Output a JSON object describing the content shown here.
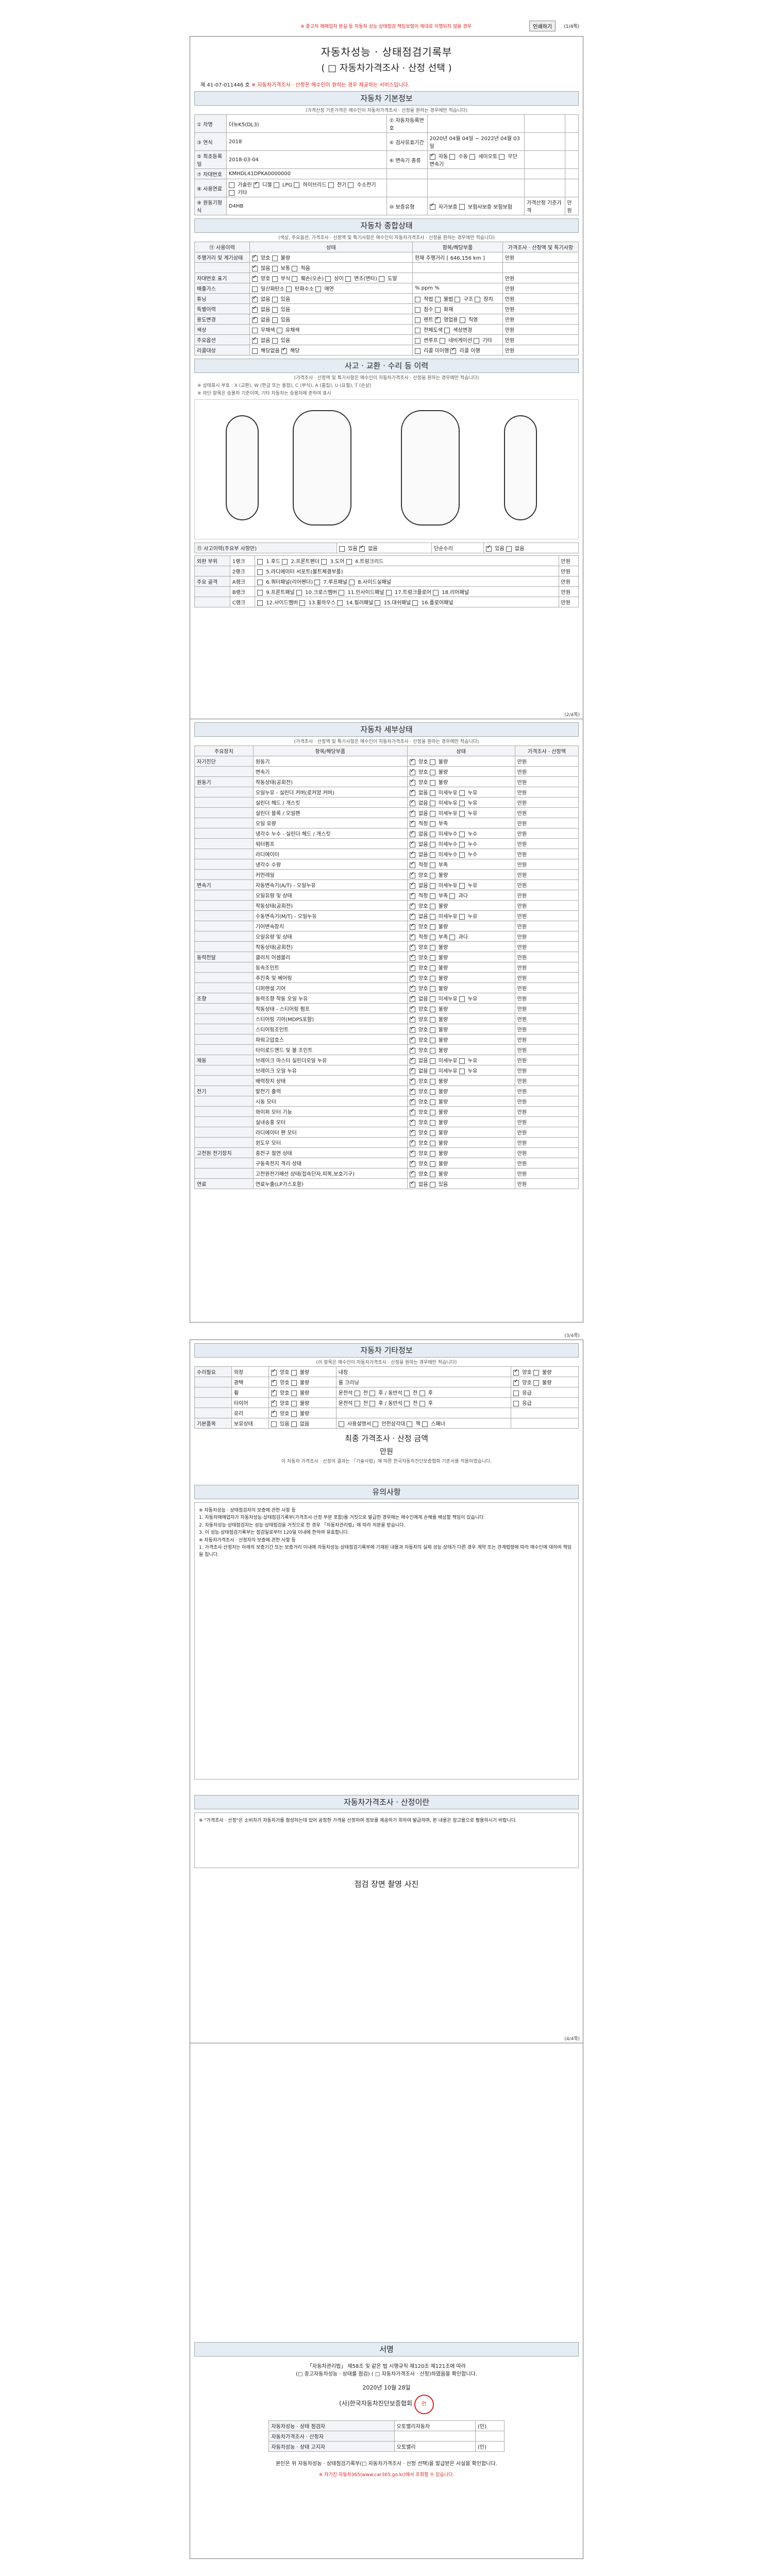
{
  "top": {
    "notice": "※ 중고차 매매업자 분실 등 자동차 성능·상태점검 책임보험이 제대로 이행되지 않을 경우",
    "print_label": "인쇄하기",
    "page": "(1/4쪽)"
  },
  "p1": {
    "title": "자동차성능 · 상태점검기록부",
    "subtitle": "( □ 자동차가격조사 · 산정 선택 )",
    "no_label": "제",
    "no_value": "41-07-011446",
    "no_suffix": "호",
    "meta_text": "※ 자동차가격조사 · 산정은 매수인이 원하는 경우 제공하는 서비스입니다.",
    "basic_title": "자동차 기본정보",
    "basic_sub": "(가격산정 기준가격은 매수인이 자동차가격조사 · 산정을 원하는 경우에만 적습니다)",
    "basic_rows": [
      [
        "① 차명",
        "더뉴K5(DL3)",
        "② 자동차등록번호",
        "",
        "",
        ""
      ],
      [
        "③ 연식",
        "2018",
        "④ 검사유효기간",
        "2020년 04월 04일 ~ 2022년 04월 03일",
        "",
        ""
      ],
      [
        "⑤ 최초등록일",
        "2018-03-04",
        "⑥ 변속기 종류",
        "■ 자동 □ 수동 □ 세미오토 □ 무단변속기",
        "",
        ""
      ],
      [
        "⑦ 차대번호",
        "KMHDL41DPKA0000000",
        "",
        "",
        "",
        ""
      ],
      [
        "⑧ 사용연료",
        "□ 가솔린 ■ 디젤 □ LPG □ 하이브리드 □ 전기 □ 수소전기 □ 기타",
        "",
        "",
        "",
        ""
      ],
      [
        "⑨ 원동기형식",
        "D4HB",
        "⑩ 보증유형",
        "■ 자가보증 □ 보험사보증 보험보험",
        "가격산정 기준가격",
        "만원"
      ]
    ],
    "overall_title": "자동차 종합상태",
    "overall_sub": "(색상, 주요옵션, 가격조사 · 산정액 및 특기사항은 매수인이 자동차가격조사 · 산정을 원하는 경우에만 적습니다)",
    "overall_headers": [
      "⑪ 사용이력",
      "상태",
      "항목/해당부품",
      "가격조사 · 산정액 및 특기사항"
    ],
    "overall_rows": [
      [
        "주행거리 및 계기상태",
        "■ 양호 □ 불량",
        "현재 주행거리 [ 646,156 km ]",
        "만원"
      ],
      [
        "",
        "■ 많음 □ 보통 □ 적음",
        "",
        ""
      ],
      [
        "차대번호 표기",
        "■ 양호 □ 부식 □ 훼손(오손) □ 상이 □ 변조(변타) □ 도말",
        "",
        "만원"
      ],
      [
        "배출가스",
        "□ 일산화탄소 □ 탄화수소 □ 매연",
        "% ppm %",
        "만원"
      ],
      [
        "튜닝",
        "■ 없음 □ 있음",
        "□ 적법 □ 불법 □ 구조 □ 장치",
        "만원"
      ],
      [
        "특별이력",
        "■ 없음 □ 있음",
        "□ 침수 □ 화재",
        "만원"
      ],
      [
        "용도변경",
        "■ 없음 □ 있음",
        "□ 렌트 ■ 영업용 □ 직영",
        "만원"
      ],
      [
        "색상",
        "□ 무채색 □ 유채색",
        "□ 전체도색 □ 색상변경",
        "만원"
      ],
      [
        "주요옵션",
        "■ 없음 □ 있음",
        "□ 썬루프 □ 네비게이션 □ 기타",
        "만원"
      ],
      [
        "리콜대상",
        "□ 해당없음 ■ 해당",
        "□ 리콜 미이행 ■ 리콜 이행",
        "만원"
      ]
    ],
    "accident_title": "사고 · 교환 · 수리 등 이력",
    "accident_sub": "(가격조사 · 산정액 및 특기사항은 매수인이 자동차가격조사 · 산정을 원하는 경우에만 적습니다)",
    "legend": "※ 상태표시 부호 : X (교환), W (판금 또는 용접), C (부식), A (흠집), U (요철), T (손상)",
    "legend2": "※ 하단 항목은 승용차 기준이며, 기타 자동차는 승용차에 준하여 표시",
    "history_rows": [
      [
        "⑪ 사고이력(주요부 사항만)",
        "□ 있음 ■ 없음",
        "단순수리",
        "■ 있음 □ 없음"
      ]
    ],
    "parts_rows": [
      [
        "외판 부위",
        "1랭크",
        "□ 1.후드 □ 2.프론트펜더 □ 3.도어 □ 4.트렁크리드",
        "만원"
      ],
      [
        "",
        "2랭크",
        "□ 5.라디에이터 서포트(볼트체결부품)",
        "만원"
      ],
      [
        "주요 골격",
        "A랭크",
        "□ 6.쿼터패널(리어펜더) □ 7.루프패널 □ 8.사이드실패널",
        "만원"
      ],
      [
        "",
        "B랭크",
        "□ 9.프론트패널 □ 10.크로스멤버 □ 11.인사이드패널 □ 17.트렁크플로어 □ 18.리어패널",
        "만원"
      ],
      [
        "",
        "C랭크",
        "□ 12.사이드멤버 □ 13.휠하우스 □ 14.필러패널 □ 15.대쉬패널 □ 16.플로어패널",
        "만원"
      ]
    ]
  },
  "p2": {
    "page": "(2/4쪽)",
    "title": "자동차 세부상태",
    "sub": "(가격조사 · 산정액 및 특기사항은 매수인이 자동차가격조사 · 산정을 원하는 경우에만 적습니다)",
    "headers": [
      "주요장치",
      "항목/해당부품",
      "상태",
      "가격조사 · 산정액"
    ],
    "rows": [
      [
        "자기진단",
        "원동기",
        "■ 양호 □ 불량",
        "만원"
      ],
      [
        "",
        "변속기",
        "■ 양호 □ 불량",
        "만원"
      ],
      [
        "원동기",
        "작동상태(공회전)",
        "■ 양호 □ 불량",
        "만원"
      ],
      [
        "",
        "오일누유 - 실린더 커버(로커암 커버)",
        "■ 없음 □ 미세누유 □ 누유",
        "만원"
      ],
      [
        "",
        "실린더 헤드 / 개스킷",
        "■ 없음 □ 미세누유 □ 누유",
        "만원"
      ],
      [
        "",
        "실린더 블록 / 오일팬",
        "■ 없음 □ 미세누유 □ 누유",
        "만원"
      ],
      [
        "",
        "오일 유량",
        "■ 적정 □ 부족",
        "만원"
      ],
      [
        "",
        "냉각수 누수 - 실린더 헤드 / 개스킷",
        "■ 없음 □ 미세누수 □ 누수",
        "만원"
      ],
      [
        "",
        "워터펌프",
        "■ 없음 □ 미세누수 □ 누수",
        "만원"
      ],
      [
        "",
        "라디에이터",
        "■ 없음 □ 미세누수 □ 누수",
        "만원"
      ],
      [
        "",
        "냉각수 수량",
        "■ 적정 □ 부족",
        "만원"
      ],
      [
        "",
        "커먼레일",
        "■ 양호 □ 불량",
        "만원"
      ],
      [
        "변속기",
        "자동변속기(A/T) - 오일누유",
        "■ 없음 □ 미세누유 □ 누유",
        "만원"
      ],
      [
        "",
        "오일유량 및 상태",
        "■ 적정 □ 부족 □ 과다",
        "만원"
      ],
      [
        "",
        "작동상태(공회전)",
        "■ 양호 □ 불량",
        "만원"
      ],
      [
        "",
        "수동변속기(M/T) - 오일누유",
        "■ 없음 □ 미세누유 □ 누유",
        "만원"
      ],
      [
        "",
        "기어변속장치",
        "■ 양호 □ 불량",
        "만원"
      ],
      [
        "",
        "오일유량 및 상태",
        "■ 적정 □ 부족 □ 과다",
        "만원"
      ],
      [
        "",
        "작동상태(공회전)",
        "■ 양호 □ 불량",
        "만원"
      ],
      [
        "동력전달",
        "클러치 어셈블리",
        "■ 양호 □ 불량",
        "만원"
      ],
      [
        "",
        "등속조인트",
        "■ 양호 □ 불량",
        "만원"
      ],
      [
        "",
        "추진축 및 베어링",
        "■ 양호 □ 불량",
        "만원"
      ],
      [
        "",
        "디퍼렌셜 기어",
        "■ 양호 □ 불량",
        "만원"
      ],
      [
        "조향",
        "동력조향 작동 오일 누유",
        "■ 없음 □ 미세누유 □ 누유",
        "만원"
      ],
      [
        "",
        "작동상태 - 스티어링 펌프",
        "■ 양호 □ 불량",
        "만원"
      ],
      [
        "",
        "스티어링 기어(MDPS포함)",
        "■ 양호 □ 불량",
        "만원"
      ],
      [
        "",
        "스티어링조인트",
        "■ 양호 □ 불량",
        "만원"
      ],
      [
        "",
        "파워고압호스",
        "■ 양호 □ 불량",
        "만원"
      ],
      [
        "",
        "타이로드엔드 및 볼 조인트",
        "■ 양호 □ 불량",
        "만원"
      ],
      [
        "제동",
        "브레이크 마스터 실린더오일 누유",
        "■ 없음 □ 미세누유 □ 누유",
        "만원"
      ],
      [
        "",
        "브레이크 오일 누유",
        "■ 없음 □ 미세누유 □ 누유",
        "만원"
      ],
      [
        "",
        "배력장치 상태",
        "■ 양호 □ 불량",
        "만원"
      ],
      [
        "전기",
        "발전기 출력",
        "■ 양호 □ 불량",
        "만원"
      ],
      [
        "",
        "시동 모터",
        "■ 양호 □ 불량",
        "만원"
      ],
      [
        "",
        "와이퍼 모터 기능",
        "■ 양호 □ 불량",
        "만원"
      ],
      [
        "",
        "실내송풍 모터",
        "■ 양호 □ 불량",
        "만원"
      ],
      [
        "",
        "라디에이터 팬 모터",
        "■ 양호 □ 불량",
        "만원"
      ],
      [
        "",
        "윈도우 모터",
        "■ 양호 □ 불량",
        "만원"
      ],
      [
        "고전원 전기장치",
        "충전구 절연 상태",
        "■ 양호 □ 불량",
        "만원"
      ],
      [
        "",
        "구동축전지 격리 상태",
        "■ 양호 □ 불량",
        "만원"
      ],
      [
        "",
        "고전원전기배선 상태(접속단자,피복,보호기구)",
        "■ 양호 □ 불량",
        "만원"
      ],
      [
        "연료",
        "연료누출(LP가스포함)",
        "■ 없음 □ 있음",
        "만원"
      ]
    ]
  },
  "p3": {
    "page": "(3/4쪽)",
    "title": "자동차 기타정보",
    "sub": "(이 항목은 매수인이 자동차가격조사 · 산정을 원하는 경우에만 적습니다)",
    "rows": [
      [
        "수리필요",
        "외장",
        "■ 양호 □ 불량",
        "내장",
        "■ 양호 □ 불량"
      ],
      [
        "",
        "광택",
        "■ 양호 □ 불량",
        "룸 크리닝",
        "■ 양호 □ 불량"
      ],
      [
        "",
        "휠",
        "■ 양호 □ 불량",
        "운전석 □ 전 □ 후 / 동반석 □ 전 □ 후",
        "□ 응급"
      ],
      [
        "",
        "타이어",
        "■ 양호 □ 불량",
        "운전석 □ 전 □ 후 / 동반석 □ 전 □ 후",
        "□ 응급"
      ],
      [
        "",
        "유리",
        "■ 양호 □ 불량",
        "",
        ""
      ],
      [
        "기본품목",
        "보유상태",
        "□ 있음 □ 없음",
        "□ 사용설명서 □ 안전삼각대 □ 잭 □ 스패너",
        ""
      ]
    ],
    "final_title": "최종 가격조사 · 산정 금액",
    "final_unit": "만원",
    "final_note": "이 자동차 가격조사 · 산정의 결과는 「기술사법」에 따른 한국자동차진단보증협회 기준서를 적용하였습니다.",
    "notes_title": "유의사항",
    "notes_text": "※ 자동차성능 · 상태점검자의 보증에 관한 사항 등\n1. 자동차매매업자가 자동차성능·상태점검기록부(가격조사·산정 부분 포함)를 거짓으로 발급한 경우에는 매수인에게 손해를 배상할 책임이 있습니다.\n2. 자동차성능·상태점검자는 성능·상태점검을 거짓으로 한 경우 「자동차관리법」에 따라 처분을 받습니다.\n3. 이 성능·상태점검기록부는 점검일로부터 120일 이내에 한하여 유효합니다.\n※ 자동차가격조사 · 산정자의 보증에 관한 사항 등\n1. 가격조사·산정자는 아래의 보증기간 또는 보증거리 이내에 자동차성능·상태점검기록부에 기재된 내용과 자동차의 실제 성능·상태가 다른 경우 계약 또는 관계법령에 따라 매수인에 대하여 책임을 집니다.",
    "guide_title": "자동차가격조사 · 산정이란",
    "guide_text": "※ \"가격조사 · 산정\"은 소비자가 자동차가를 형성하는데 있어 공정한 가격을 산정하여 정보를 제공하기 위하여 발급하며, 본 내용은 참고용으로 활용하시기 바랍니다.",
    "photo_title": "점검 장면 촬영 사진"
  },
  "p4": {
    "page": "(4/4쪽)",
    "sign_title": "서명",
    "sign_text": "「자동차관리법」 제58조 및 같은 법 시행규칙 제120조 제121조에 따라\n(□ 중고자동차성능 · 상태를 점검) ( □ 자동차가격조사 · 산정)하였음을 확인합니다.",
    "date": "2020년 10월 28일",
    "company": "(사)한국자동차진단보증협회",
    "rows": [
      [
        "자동차성능 · 상태 점검자",
        "오토밸리자동차",
        "(인)"
      ],
      [
        "자동차가격조사 · 산정자",
        "",
        ""
      ],
      [
        "자동차성능 · 상태 고지자",
        "오토밸리",
        "(인)"
      ]
    ],
    "footer": "본인은 위 자동차성능 · 상태점검기록부(□ 자동차가격조사 · 산정 선택)을 발급받은 사실을 확인합니다.",
    "footer2": "※ 자기진 자동차365(www.car365.go.kr)에서 조회할 수 있습니다.",
    "stamp": "인"
  }
}
